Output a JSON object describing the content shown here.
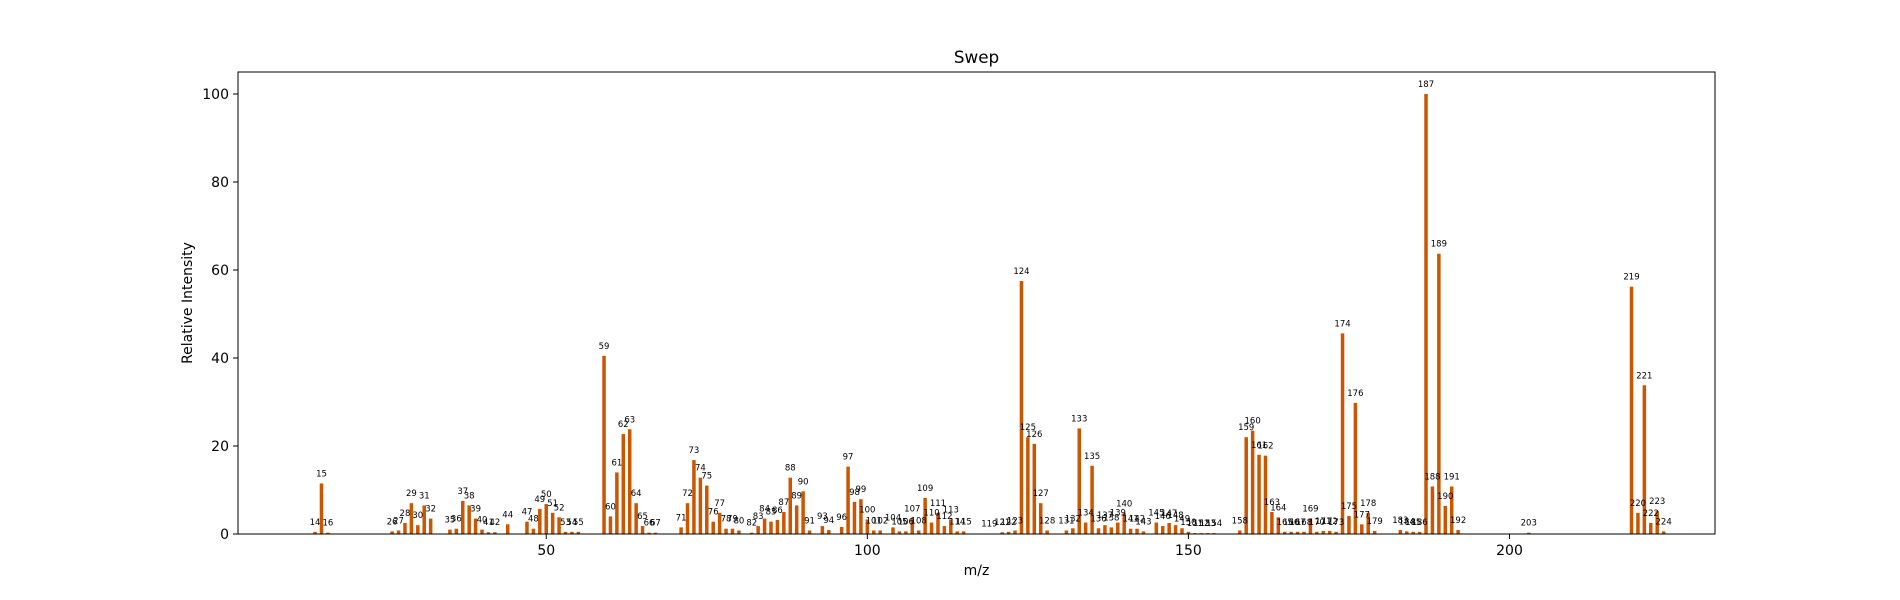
{
  "chart_data": {
    "type": "bar",
    "title": "Swep",
    "xlabel": "m/z",
    "ylabel": "Relative Intensity",
    "xlim": [
      2,
      232
    ],
    "ylim": [
      0,
      105
    ],
    "xticks": [
      50,
      100,
      150,
      200
    ],
    "yticks": [
      0,
      20,
      40,
      60,
      80,
      100
    ],
    "grid": false,
    "bar_color": "#cc5500",
    "peaks": [
      {
        "x": 14,
        "y": 0.5
      },
      {
        "x": 15,
        "y": 11.5
      },
      {
        "x": 16,
        "y": 0.3
      },
      {
        "x": 26,
        "y": 0.6
      },
      {
        "x": 27,
        "y": 0.8
      },
      {
        "x": 28,
        "y": 2.5
      },
      {
        "x": 29,
        "y": 7
      },
      {
        "x": 30,
        "y": 2
      },
      {
        "x": 31,
        "y": 6.5
      },
      {
        "x": 32,
        "y": 3.5
      },
      {
        "x": 35,
        "y": 1
      },
      {
        "x": 36,
        "y": 1.2
      },
      {
        "x": 37,
        "y": 7.5
      },
      {
        "x": 38,
        "y": 6.5
      },
      {
        "x": 39,
        "y": 3.5
      },
      {
        "x": 40,
        "y": 1
      },
      {
        "x": 41,
        "y": 0.4
      },
      {
        "x": 42,
        "y": 0.4
      },
      {
        "x": 44,
        "y": 2.2
      },
      {
        "x": 47,
        "y": 2.8
      },
      {
        "x": 48,
        "y": 1.2
      },
      {
        "x": 49,
        "y": 5.7
      },
      {
        "x": 50,
        "y": 6.8
      },
      {
        "x": 51,
        "y": 4.8
      },
      {
        "x": 52,
        "y": 3.8
      },
      {
        "x": 53,
        "y": 0.5
      },
      {
        "x": 54,
        "y": 0.5
      },
      {
        "x": 55,
        "y": 0.5
      },
      {
        "x": 59,
        "y": 40.5
      },
      {
        "x": 60,
        "y": 4
      },
      {
        "x": 61,
        "y": 14
      },
      {
        "x": 62,
        "y": 22.7
      },
      {
        "x": 63,
        "y": 23.8
      },
      {
        "x": 64,
        "y": 7
      },
      {
        "x": 65,
        "y": 1.8
      },
      {
        "x": 66,
        "y": 0.3
      },
      {
        "x": 67,
        "y": 0.3
      },
      {
        "x": 71,
        "y": 1.5
      },
      {
        "x": 72,
        "y": 7
      },
      {
        "x": 73,
        "y": 16.8
      },
      {
        "x": 74,
        "y": 12.8
      },
      {
        "x": 75,
        "y": 11
      },
      {
        "x": 76,
        "y": 2.8
      },
      {
        "x": 77,
        "y": 4.8
      },
      {
        "x": 78,
        "y": 1.2
      },
      {
        "x": 79,
        "y": 1.2
      },
      {
        "x": 80,
        "y": 0.8
      },
      {
        "x": 82,
        "y": 0.3
      },
      {
        "x": 83,
        "y": 1.8
      },
      {
        "x": 84,
        "y": 3.5
      },
      {
        "x": 85,
        "y": 2.8
      },
      {
        "x": 86,
        "y": 3.2
      },
      {
        "x": 87,
        "y": 5
      },
      {
        "x": 88,
        "y": 12.8
      },
      {
        "x": 89,
        "y": 6.5
      },
      {
        "x": 90,
        "y": 9.7
      },
      {
        "x": 91,
        "y": 0.8
      },
      {
        "x": 93,
        "y": 1.8
      },
      {
        "x": 94,
        "y": 0.9
      },
      {
        "x": 96,
        "y": 1.6
      },
      {
        "x": 97,
        "y": 15.3
      },
      {
        "x": 98,
        "y": 7.3
      },
      {
        "x": 99,
        "y": 7.9
      },
      {
        "x": 100,
        "y": 3.3
      },
      {
        "x": 101,
        "y": 0.8
      },
      {
        "x": 102,
        "y": 0.8
      },
      {
        "x": 104,
        "y": 1.5
      },
      {
        "x": 105,
        "y": 0.6
      },
      {
        "x": 106,
        "y": 0.6
      },
      {
        "x": 107,
        "y": 3.5
      },
      {
        "x": 108,
        "y": 0.8
      },
      {
        "x": 109,
        "y": 8.2
      },
      {
        "x": 110,
        "y": 2.6
      },
      {
        "x": 111,
        "y": 4.8
      },
      {
        "x": 112,
        "y": 1.8
      },
      {
        "x": 113,
        "y": 3.3
      },
      {
        "x": 114,
        "y": 0.6
      },
      {
        "x": 115,
        "y": 0.6
      },
      {
        "x": 119,
        "y": 0.1
      },
      {
        "x": 121,
        "y": 0.4
      },
      {
        "x": 122,
        "y": 0.5
      },
      {
        "x": 123,
        "y": 0.8
      },
      {
        "x": 124,
        "y": 57.5
      },
      {
        "x": 125,
        "y": 22
      },
      {
        "x": 126,
        "y": 20.5
      },
      {
        "x": 127,
        "y": 7
      },
      {
        "x": 128,
        "y": 0.8
      },
      {
        "x": 131,
        "y": 0.8
      },
      {
        "x": 132,
        "y": 1.3
      },
      {
        "x": 133,
        "y": 24
      },
      {
        "x": 134,
        "y": 2.6
      },
      {
        "x": 135,
        "y": 15.5
      },
      {
        "x": 136,
        "y": 1.3
      },
      {
        "x": 137,
        "y": 2
      },
      {
        "x": 138,
        "y": 1.5
      },
      {
        "x": 139,
        "y": 2.6
      },
      {
        "x": 140,
        "y": 4.7
      },
      {
        "x": 141,
        "y": 1.2
      },
      {
        "x": 142,
        "y": 1.2
      },
      {
        "x": 143,
        "y": 0.6
      },
      {
        "x": 145,
        "y": 2.6
      },
      {
        "x": 146,
        "y": 1.8
      },
      {
        "x": 147,
        "y": 2.5
      },
      {
        "x": 148,
        "y": 2
      },
      {
        "x": 149,
        "y": 1.3
      },
      {
        "x": 150,
        "y": 0.5
      },
      {
        "x": 151,
        "y": 0.2
      },
      {
        "x": 152,
        "y": 0.2
      },
      {
        "x": 153,
        "y": 0.2
      },
      {
        "x": 154,
        "y": 0.2
      },
      {
        "x": 158,
        "y": 0.8
      },
      {
        "x": 159,
        "y": 22
      },
      {
        "x": 160,
        "y": 23.5
      },
      {
        "x": 161,
        "y": 18
      },
      {
        "x": 162,
        "y": 17.8
      },
      {
        "x": 163,
        "y": 5
      },
      {
        "x": 164,
        "y": 3.8
      },
      {
        "x": 165,
        "y": 0.5
      },
      {
        "x": 166,
        "y": 0.5
      },
      {
        "x": 167,
        "y": 0.5
      },
      {
        "x": 168,
        "y": 0.5
      },
      {
        "x": 169,
        "y": 3.5
      },
      {
        "x": 170,
        "y": 0.5
      },
      {
        "x": 171,
        "y": 0.7
      },
      {
        "x": 172,
        "y": 0.7
      },
      {
        "x": 173,
        "y": 0.5
      },
      {
        "x": 174,
        "y": 45.6
      },
      {
        "x": 175,
        "y": 4.1
      },
      {
        "x": 176,
        "y": 29.8
      },
      {
        "x": 177,
        "y": 2.2
      },
      {
        "x": 178,
        "y": 4.8
      },
      {
        "x": 179,
        "y": 0.7
      },
      {
        "x": 183,
        "y": 0.9
      },
      {
        "x": 184,
        "y": 0.6
      },
      {
        "x": 185,
        "y": 0.5
      },
      {
        "x": 186,
        "y": 0.5
      },
      {
        "x": 187,
        "y": 100
      },
      {
        "x": 188,
        "y": 10.8
      },
      {
        "x": 189,
        "y": 63.7
      },
      {
        "x": 190,
        "y": 6.4
      },
      {
        "x": 191,
        "y": 10.8
      },
      {
        "x": 192,
        "y": 0.9
      },
      {
        "x": 203,
        "y": 0.3
      },
      {
        "x": 219,
        "y": 56.2
      },
      {
        "x": 220,
        "y": 4.8
      },
      {
        "x": 221,
        "y": 33.8
      },
      {
        "x": 222,
        "y": 2.5
      },
      {
        "x": 223,
        "y": 5.2
      },
      {
        "x": 224,
        "y": 0.6
      }
    ]
  }
}
